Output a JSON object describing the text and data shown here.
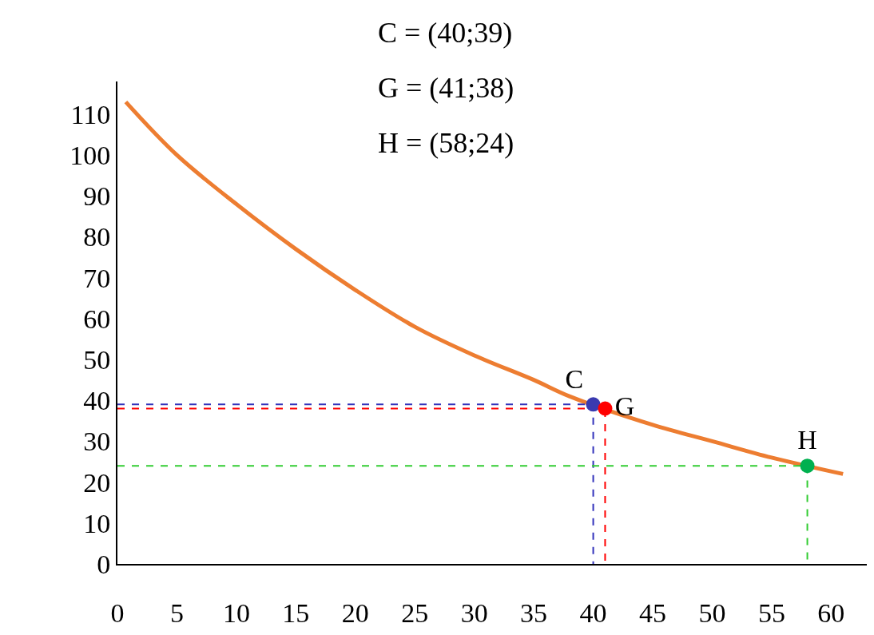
{
  "chart_data": {
    "type": "line",
    "xlim": [
      0,
      63
    ],
    "ylim": [
      0,
      118
    ],
    "xticks": [
      0,
      5,
      10,
      15,
      20,
      25,
      30,
      35,
      40,
      45,
      50,
      55,
      60
    ],
    "yticks": [
      0,
      10,
      20,
      30,
      40,
      50,
      60,
      70,
      80,
      90,
      100,
      110
    ],
    "annotations": [
      "C = (40;39)",
      "G = (41;38)",
      "H = (58;24)"
    ],
    "series": [
      {
        "color": "#ed7d31",
        "marker": "none",
        "line_style": "solid",
        "x": [
          0.7,
          5,
          10,
          15,
          20,
          25,
          30,
          35,
          38,
          45,
          50,
          55,
          61
        ],
        "values": [
          113,
          100,
          88,
          77,
          67,
          58,
          51,
          45,
          41,
          34,
          30,
          26,
          22
        ]
      },
      {
        "type": "line",
        "color": "#3333bb",
        "marker": "none",
        "line_style": "dashed",
        "x": [
          0,
          40,
          40
        ],
        "values": [
          39,
          39,
          0
        ]
      },
      {
        "type": "line",
        "color": "#ff0000",
        "marker": "none",
        "line_style": "dashed",
        "x": [
          0,
          41,
          41
        ],
        "values": [
          38,
          38,
          0
        ]
      },
      {
        "type": "line",
        "color": "#33cc33",
        "marker": "none",
        "line_style": "dashed",
        "x": [
          0,
          58,
          58
        ],
        "values": [
          24,
          24,
          0
        ]
      },
      {
        "type": "scatter",
        "name": "C",
        "color": "#3a3ab0",
        "marker": "circle",
        "x": [
          40
        ],
        "values": [
          39
        ]
      },
      {
        "type": "scatter",
        "name": "G",
        "color": "#ff0000",
        "marker": "circle",
        "x": [
          41
        ],
        "values": [
          38
        ]
      },
      {
        "type": "scatter",
        "name": "H",
        "color": "#00b050",
        "marker": "circle",
        "x": [
          58
        ],
        "values": [
          24
        ]
      }
    ]
  }
}
